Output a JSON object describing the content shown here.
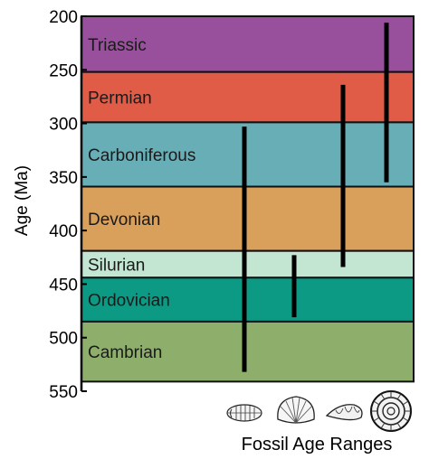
{
  "y_axis": {
    "title": "Age (Ma)",
    "min": 200,
    "max": 550,
    "ticks": [
      "200",
      "250",
      "300",
      "350",
      "400",
      "450",
      "500",
      "550"
    ],
    "tick_values": [
      200,
      250,
      300,
      350,
      400,
      450,
      500,
      550
    ]
  },
  "periods": [
    {
      "name": "Triassic",
      "start": 200,
      "end": 252,
      "color": "#98509c"
    },
    {
      "name": "Permian",
      "start": 252,
      "end": 299,
      "color": "#e05c47"
    },
    {
      "name": "Carboniferous",
      "start": 299,
      "end": 359,
      "color": "#67aeb7"
    },
    {
      "name": "Devonian",
      "start": 359,
      "end": 419,
      "color": "#d9a05c"
    },
    {
      "name": "Silurian",
      "start": 419,
      "end": 444,
      "color": "#c2e6d2"
    },
    {
      "name": "Ordovician",
      "start": 444,
      "end": 485,
      "color": "#0c9a84"
    },
    {
      "name": "Cambrian",
      "start": 485,
      "end": 541,
      "color": "#8eaf6b"
    }
  ],
  "fossil_ranges": [
    {
      "icon": "trilobite-icon",
      "start": 303,
      "end": 532
    },
    {
      "icon": "brachiopod-icon",
      "start": 423,
      "end": 481
    },
    {
      "icon": "gastropod-icon",
      "start": 264,
      "end": 434
    },
    {
      "icon": "ammonite-icon",
      "start": 206,
      "end": 355
    }
  ],
  "caption": "Fossil Age Ranges"
}
